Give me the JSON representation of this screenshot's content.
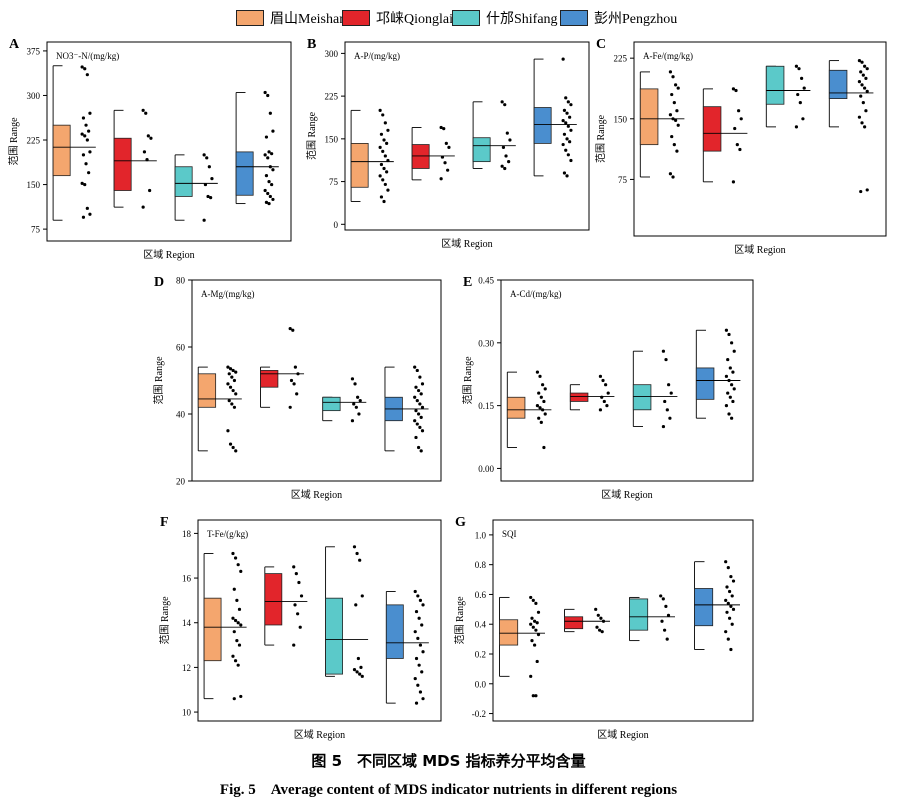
{
  "legend": [
    {
      "label": "眉山Meishan",
      "color": "#f4a66e"
    },
    {
      "label": "邛崃Qionglai",
      "color": "#e2252b"
    },
    {
      "label": "什邡Shifang",
      "color": "#5bc9c9"
    },
    {
      "label": "彭州Pengzhou",
      "color": "#4a8ecf"
    }
  ],
  "caption_cn": "图 5　不同区域 MDS 指标养分平均含量",
  "caption_en": "Fig. 5　Average content of MDS indicator nutrients in different regions",
  "chart_data": [
    {
      "type": "box",
      "panel": "A",
      "title": "NO3⁻-N/(mg/kg)",
      "xlabel": "区域  Region",
      "ylabel": "范围 Range",
      "ylim": [
        55,
        390
      ],
      "yticks": [
        75,
        150,
        225,
        300,
        375
      ],
      "series": [
        {
          "name": "眉山Meishan",
          "q1": 165,
          "q3": 250,
          "mean": 213,
          "min": 90,
          "max": 350,
          "points": [
            348,
            345,
            335,
            270,
            262,
            250,
            240,
            235,
            232,
            225,
            205,
            200,
            185,
            170,
            152,
            150,
            110,
            100,
            95
          ]
        },
        {
          "name": "邛崃Qionglai",
          "q1": 140,
          "q3": 228,
          "mean": 190,
          "min": 112,
          "max": 275,
          "points": [
            275,
            270,
            232,
            228,
            205,
            192,
            140,
            112
          ]
        },
        {
          "name": "什邡Shifang",
          "q1": 130,
          "q3": 180,
          "mean": 152,
          "min": 90,
          "max": 200,
          "points": [
            200,
            195,
            180,
            160,
            150,
            130,
            128,
            90
          ]
        },
        {
          "name": "彭州Pengzhou",
          "q1": 132,
          "q3": 205,
          "mean": 180,
          "min": 118,
          "max": 305,
          "points": [
            305,
            300,
            270,
            240,
            230,
            205,
            202,
            200,
            195,
            180,
            175,
            165,
            155,
            150,
            140,
            135,
            130,
            125,
            120,
            118
          ]
        }
      ]
    },
    {
      "type": "box",
      "panel": "B",
      "title": "A-P/(mg/kg)",
      "xlabel": "区域  Region",
      "ylabel": "范围 Range",
      "ylim": [
        -10,
        320
      ],
      "yticks": [
        0,
        75,
        150,
        225,
        300
      ],
      "series": [
        {
          "name": "眉山Meishan",
          "q1": 65,
          "q3": 142,
          "mean": 110,
          "min": 40,
          "max": 200,
          "points": [
            200,
            192,
            178,
            165,
            158,
            148,
            142,
            135,
            128,
            120,
            112,
            105,
            98,
            92,
            85,
            78,
            70,
            60,
            48,
            40
          ]
        },
        {
          "name": "邛崃Qionglai",
          "q1": 98,
          "q3": 140,
          "mean": 120,
          "min": 78,
          "max": 170,
          "points": [
            170,
            168,
            142,
            135,
            118,
            108,
            95,
            80
          ]
        },
        {
          "name": "什邡Shifang",
          "q1": 110,
          "q3": 152,
          "mean": 138,
          "min": 98,
          "max": 215,
          "points": [
            215,
            210,
            160,
            148,
            135,
            120,
            110,
            102,
            98
          ]
        },
        {
          "name": "彭州Pengzhou",
          "q1": 142,
          "q3": 205,
          "mean": 175,
          "min": 85,
          "max": 290,
          "points": [
            290,
            222,
            215,
            210,
            200,
            195,
            188,
            182,
            178,
            172,
            165,
            158,
            150,
            145,
            140,
            130,
            122,
            112,
            90,
            85
          ]
        }
      ]
    },
    {
      "type": "box",
      "panel": "C",
      "title": "A-Fe/(mg/kg)",
      "xlabel": "区域  Region",
      "ylabel": "范围 Range",
      "ylim": [
        5,
        245
      ],
      "yticks": [
        75,
        150,
        225
      ],
      "series": [
        {
          "name": "眉山Meishan",
          "q1": 118,
          "q3": 187,
          "mean": 150,
          "min": 78,
          "max": 208,
          "points": [
            208,
            202,
            192,
            188,
            180,
            170,
            160,
            155,
            150,
            148,
            142,
            128,
            118,
            110,
            82,
            78
          ]
        },
        {
          "name": "邛崃Qionglai",
          "q1": 110,
          "q3": 165,
          "mean": 132,
          "min": 72,
          "max": 187,
          "points": [
            187,
            185,
            160,
            150,
            138,
            118,
            112,
            72
          ]
        },
        {
          "name": "什邡Shifang",
          "q1": 168,
          "q3": 215,
          "mean": 185,
          "min": 140,
          "max": 215,
          "points": [
            215,
            212,
            200,
            188,
            180,
            170,
            150,
            140
          ]
        },
        {
          "name": "彭州Pengzhou",
          "q1": 175,
          "q3": 210,
          "mean": 182,
          "min": 140,
          "max": 222,
          "points": [
            222,
            220,
            215,
            212,
            208,
            204,
            200,
            196,
            192,
            188,
            184,
            178,
            170,
            160,
            152,
            145,
            140,
            62,
            60
          ]
        }
      ]
    },
    {
      "type": "box",
      "panel": "D",
      "title": "A-Mg/(mg/kg)",
      "xlabel": "区域  Region",
      "ylabel": "范围 Range",
      "ylim": [
        20,
        80
      ],
      "yticks": [
        20,
        40,
        60,
        80
      ],
      "series": [
        {
          "name": "眉山Meishan",
          "q1": 42,
          "q3": 52,
          "mean": 44.5,
          "min": 29,
          "max": 54,
          "points": [
            54,
            53.5,
            53,
            52.5,
            52,
            51,
            50,
            49,
            48,
            47,
            46,
            44,
            43,
            42,
            35,
            31,
            30,
            29
          ]
        },
        {
          "name": "邛崃Qionglai",
          "q1": 48,
          "q3": 53,
          "mean": 52,
          "min": 42,
          "max": 54,
          "points": [
            65.5,
            65,
            54,
            52,
            50,
            49,
            46,
            42
          ]
        },
        {
          "name": "什邡Shifang",
          "q1": 41,
          "q3": 45,
          "mean": 43.5,
          "min": 38,
          "max": 45,
          "points": [
            50.5,
            49,
            45,
            44,
            43,
            42,
            40,
            38
          ]
        },
        {
          "name": "彭州Pengzhou",
          "q1": 38,
          "q3": 45,
          "mean": 41.5,
          "min": 29,
          "max": 54,
          "points": [
            54,
            53,
            51,
            49,
            48,
            47,
            46,
            45,
            44,
            43,
            42,
            41,
            40,
            39,
            38,
            37,
            36,
            35,
            33,
            30,
            29
          ]
        }
      ]
    },
    {
      "type": "box",
      "panel": "E",
      "title": "A-Cd/(mg/kg)",
      "xlabel": "区域  Region",
      "ylabel": "范围 Range",
      "ylim": [
        -0.03,
        0.45
      ],
      "yticks": [
        0.0,
        0.15,
        0.3,
        0.45
      ],
      "series": [
        {
          "name": "眉山Meishan",
          "q1": 0.12,
          "q3": 0.17,
          "mean": 0.14,
          "min": 0.05,
          "max": 0.23,
          "points": [
            0.23,
            0.22,
            0.2,
            0.19,
            0.18,
            0.17,
            0.16,
            0.15,
            0.145,
            0.14,
            0.13,
            0.12,
            0.11,
            0.05
          ]
        },
        {
          "name": "邛崃Qionglai",
          "q1": 0.16,
          "q3": 0.18,
          "mean": 0.172,
          "min": 0.14,
          "max": 0.2,
          "points": [
            0.22,
            0.21,
            0.2,
            0.18,
            0.17,
            0.16,
            0.15,
            0.14
          ]
        },
        {
          "name": "什邡Shifang",
          "q1": 0.14,
          "q3": 0.2,
          "mean": 0.172,
          "min": 0.1,
          "max": 0.28,
          "points": [
            0.28,
            0.26,
            0.2,
            0.18,
            0.16,
            0.14,
            0.12,
            0.1
          ]
        },
        {
          "name": "彭州Pengzhou",
          "q1": 0.165,
          "q3": 0.24,
          "mean": 0.21,
          "min": 0.12,
          "max": 0.33,
          "points": [
            0.33,
            0.32,
            0.3,
            0.28,
            0.26,
            0.24,
            0.23,
            0.22,
            0.21,
            0.2,
            0.19,
            0.18,
            0.17,
            0.16,
            0.15,
            0.13,
            0.12
          ]
        }
      ]
    },
    {
      "type": "box",
      "panel": "F",
      "title": "T-Fe/(g/kg)",
      "xlabel": "区域  Region",
      "ylabel": "范围 Range",
      "ylim": [
        9.6,
        18.6
      ],
      "yticks": [
        10,
        12,
        14,
        16,
        18
      ],
      "series": [
        {
          "name": "眉山Meishan",
          "q1": 12.3,
          "q3": 15.1,
          "mean": 13.8,
          "min": 10.6,
          "max": 17.1,
          "points": [
            17.1,
            16.9,
            16.6,
            16.3,
            15.5,
            15.0,
            14.6,
            14.2,
            14.1,
            14.0,
            13.9,
            13.6,
            13.2,
            13.0,
            12.5,
            12.3,
            12.1,
            10.7,
            10.6
          ]
        },
        {
          "name": "邛崃Qionglai",
          "q1": 13.9,
          "q3": 16.2,
          "mean": 14.95,
          "min": 13.0,
          "max": 16.5,
          "points": [
            16.5,
            16.2,
            15.8,
            15.2,
            14.8,
            14.4,
            13.8,
            13.0
          ]
        },
        {
          "name": "什邡Shifang",
          "q1": 11.7,
          "q3": 15.1,
          "mean": 13.25,
          "min": 11.6,
          "max": 17.4,
          "points": [
            17.4,
            17.1,
            16.8,
            15.2,
            14.8,
            12.4,
            12.0,
            11.9,
            11.8,
            11.7,
            11.6
          ]
        },
        {
          "name": "彭州Pengzhou",
          "q1": 12.4,
          "q3": 14.8,
          "mean": 13.1,
          "min": 10.4,
          "max": 15.4,
          "points": [
            15.4,
            15.2,
            15.0,
            14.8,
            14.5,
            14.2,
            13.9,
            13.6,
            13.3,
            13.0,
            12.7,
            12.4,
            12.1,
            11.8,
            11.5,
            11.2,
            10.9,
            10.6,
            10.4
          ]
        }
      ]
    },
    {
      "type": "box",
      "panel": "G",
      "title": "SQI",
      "xlabel": "区域  Region",
      "ylabel": "范围 Range",
      "ylim": [
        -0.25,
        1.1
      ],
      "yticks": [
        -0.2,
        0.0,
        0.2,
        0.4,
        0.6,
        0.8,
        1.0
      ],
      "series": [
        {
          "name": "眉山Meishan",
          "q1": 0.26,
          "q3": 0.43,
          "mean": 0.34,
          "min": 0.05,
          "max": 0.58,
          "points": [
            0.58,
            0.56,
            0.54,
            0.48,
            0.44,
            0.42,
            0.41,
            0.4,
            0.38,
            0.36,
            0.33,
            0.29,
            0.26,
            0.15,
            0.05,
            -0.08,
            -0.08
          ]
        },
        {
          "name": "邛崃Qionglai",
          "q1": 0.37,
          "q3": 0.45,
          "mean": 0.42,
          "min": 0.35,
          "max": 0.5,
          "points": [
            0.5,
            0.46,
            0.44,
            0.42,
            0.38,
            0.36,
            0.35
          ]
        },
        {
          "name": "什邡Shifang",
          "q1": 0.36,
          "q3": 0.57,
          "mean": 0.45,
          "min": 0.29,
          "max": 0.58,
          "points": [
            0.59,
            0.57,
            0.52,
            0.46,
            0.42,
            0.36,
            0.3
          ]
        },
        {
          "name": "彭州Pengzhou",
          "q1": 0.39,
          "q3": 0.64,
          "mean": 0.53,
          "min": 0.23,
          "max": 0.82,
          "points": [
            0.82,
            0.78,
            0.72,
            0.69,
            0.65,
            0.62,
            0.59,
            0.56,
            0.54,
            0.52,
            0.5,
            0.48,
            0.44,
            0.4,
            0.35,
            0.3,
            0.23
          ]
        }
      ]
    }
  ]
}
